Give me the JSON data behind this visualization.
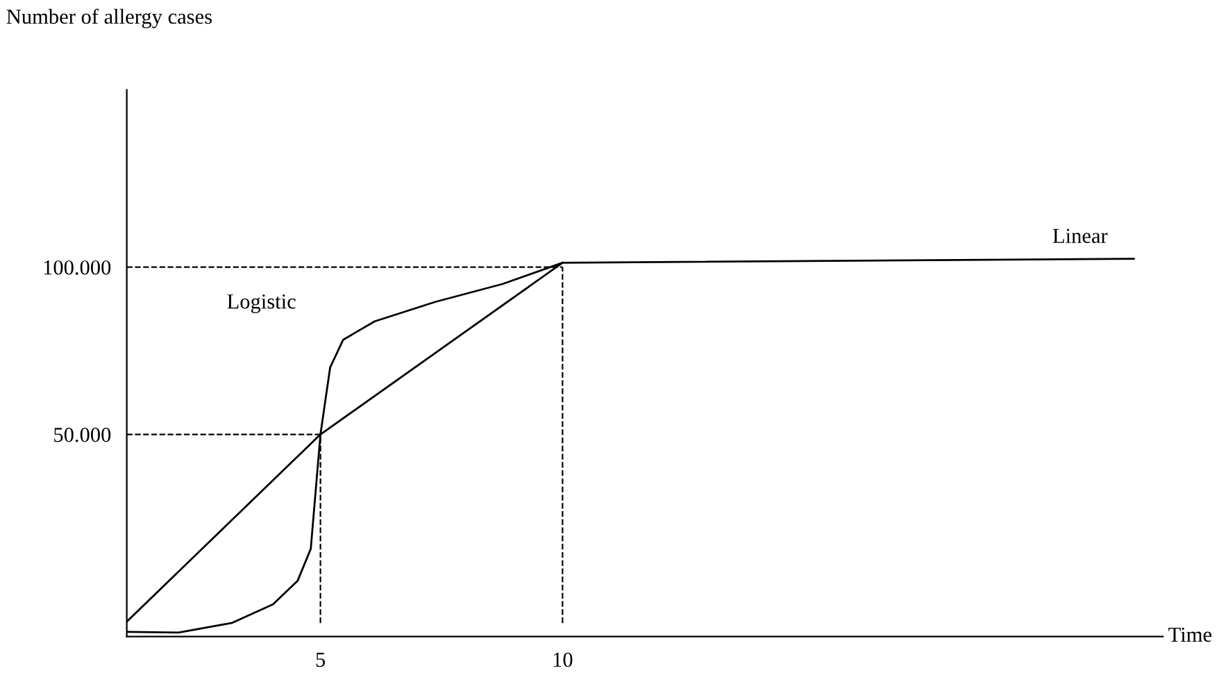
{
  "chart_data": {
    "type": "line",
    "xlabel": "Time",
    "ylabel": "Number of allergy cases",
    "xlim": [
      1,
      22.4
    ],
    "ylim": [
      -10400,
      153000
    ],
    "xticks": [
      5,
      10
    ],
    "yticks": [
      {
        "value": 50000,
        "label": "50.000"
      },
      {
        "value": 100000,
        "label": "100.000"
      }
    ],
    "grid": false,
    "legend": false,
    "marker": "none",
    "line_style": "solid",
    "ref_lines": [
      {
        "axis": "y",
        "value": 50000,
        "color": "#000000",
        "line_style": "dashed"
      },
      {
        "axis": "y",
        "value": 100000,
        "color": "#000000",
        "line_style": "dashed"
      },
      {
        "axis": "x",
        "value": 5,
        "color": "#000000",
        "line_style": "dashed"
      },
      {
        "axis": "x",
        "value": 10,
        "color": "#000000",
        "line_style": "dashed"
      }
    ],
    "series": [
      {
        "name": "Logistic",
        "color": "#000000",
        "x": [
          1.01,
          2.07,
          3.18,
          4.02,
          4.53,
          4.8,
          5.0,
          5.2,
          5.47,
          6.12,
          7.37,
          8.77,
          10
        ],
        "values": [
          -9000,
          -9200,
          -6300,
          -800,
          6300,
          15800,
          50000,
          70000,
          78300,
          83800,
          89600,
          95000,
          101300
        ]
      },
      {
        "name": "Linear",
        "color": "#000000",
        "x": [
          1.01,
          5,
          10,
          21.8
        ],
        "values": [
          -5800,
          50000,
          101300,
          102500
        ]
      }
    ]
  }
}
